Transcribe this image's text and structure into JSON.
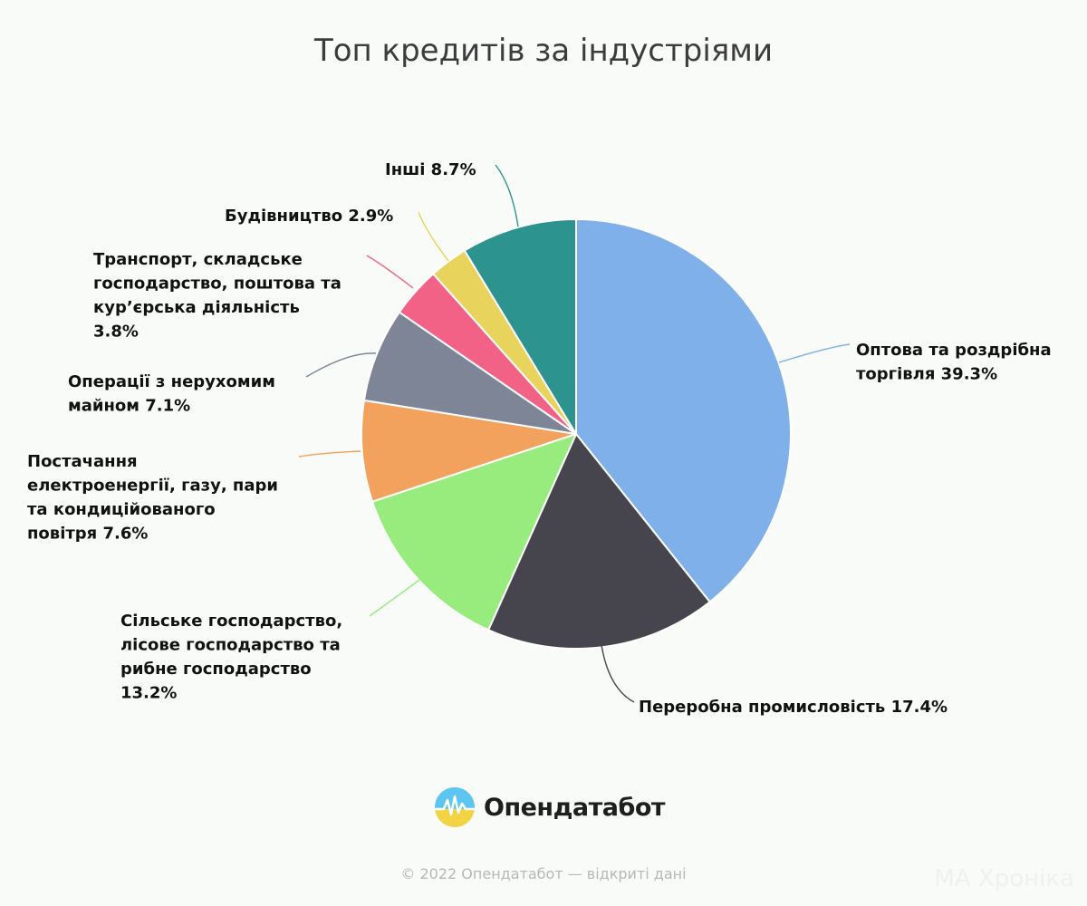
{
  "chart_data": {
    "type": "pie",
    "title": "Топ кредитів за індустріями",
    "slices": [
      {
        "label_lines": [
          "Оптова та роздрібна",
          "торгівля 39.3%"
        ],
        "value": 39.3,
        "color": "#7fb0e9"
      },
      {
        "label_lines": [
          "Переробна промисловість 17.4%"
        ],
        "value": 17.4,
        "color": "#46454e"
      },
      {
        "label_lines": [
          "Сільське господарство,",
          "лісове господарство та",
          "рибне господарство",
          "13.2%"
        ],
        "value": 13.2,
        "color": "#98ec7e"
      },
      {
        "label_lines": [
          "Постачання",
          "електроенергії, газу, пари",
          "та кондиційованого",
          "повітря 7.6%"
        ],
        "value": 7.6,
        "color": "#f3a25e"
      },
      {
        "label_lines": [
          "Операції з нерухомим",
          "майном 7.1%"
        ],
        "value": 7.1,
        "color": "#7d8597"
      },
      {
        "label_lines": [
          "Транспорт, складське",
          "господарство, поштова та",
          "кур’єрська діяльність",
          "3.8%"
        ],
        "value": 3.8,
        "color": "#f26287"
      },
      {
        "label_lines": [
          "Будівництво 2.9%"
        ],
        "value": 2.9,
        "color": "#e8d45c"
      },
      {
        "label_lines": [
          "Інші 8.7%"
        ],
        "value": 8.7,
        "color": "#2c938e"
      }
    ],
    "legend": "none"
  },
  "brand": {
    "name": "Опендатабот"
  },
  "footer": "© 2022 Опендатабот — відкриті дані",
  "watermark": "MA Хроніка"
}
